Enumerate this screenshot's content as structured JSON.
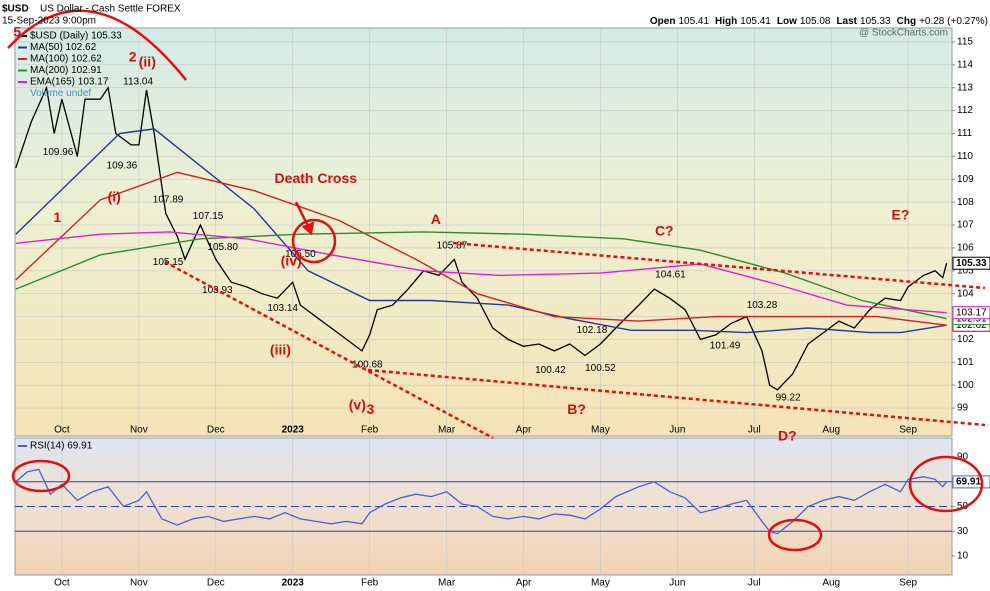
{
  "chart_data": [
    {
      "type": "line",
      "title": "$USD",
      "subtitle": "US Dollar - Cash Settle FOREX",
      "date": "15-Sep-2023 9:00pm",
      "stats": [
        {
          "label": "Open",
          "value": 105.41
        },
        {
          "label": "High",
          "value": 105.41
        },
        {
          "label": "Low",
          "value": 105.08
        },
        {
          "label": "Last",
          "value": 105.33
        },
        {
          "label": "Chg",
          "value": "+0.28 (+0.27%)"
        }
      ],
      "watermark": "@ StockCharts.com",
      "volume_legend": "Volume undef",
      "xlim": [
        0.39,
        12.57
      ],
      "xticks": [
        {
          "value": 1,
          "label": "Oct"
        },
        {
          "value": 2,
          "label": "Nov"
        },
        {
          "value": 3,
          "label": "Dec"
        },
        {
          "value": 4,
          "label": "2023"
        },
        {
          "value": 5,
          "label": "Feb"
        },
        {
          "value": 6,
          "label": "Mar"
        },
        {
          "value": 7,
          "label": "Apr"
        },
        {
          "value": 8,
          "label": "May"
        },
        {
          "value": 9,
          "label": "Jun"
        },
        {
          "value": 10,
          "label": "Jul"
        },
        {
          "value": 11,
          "label": "Aug"
        },
        {
          "value": 12,
          "label": "Sep"
        }
      ],
      "ylim": [
        97.78,
        115.61
      ],
      "yticks": [
        99,
        100,
        101,
        102,
        103,
        104,
        105,
        106,
        107,
        108,
        109,
        110,
        111,
        112,
        113,
        114,
        115
      ],
      "grid": true,
      "series": [
        {
          "name": "$USD (Daily) 105.33",
          "color": "#000000",
          "x": [
            0.4,
            0.6,
            0.8,
            0.9,
            1.0,
            1.2,
            1.3,
            1.5,
            1.6,
            1.7,
            1.9,
            2.0,
            2.1,
            2.2,
            2.35,
            2.5,
            2.6,
            2.8,
            3.0,
            3.2,
            3.4,
            3.6,
            3.8,
            4.0,
            4.1,
            4.3,
            4.5,
            4.7,
            4.9,
            5.0,
            5.1,
            5.3,
            5.5,
            5.7,
            5.9,
            6.1,
            6.2,
            6.4,
            6.6,
            6.8,
            7.0,
            7.2,
            7.4,
            7.6,
            7.8,
            8.0,
            8.2,
            8.5,
            8.7,
            8.9,
            9.1,
            9.3,
            9.5,
            9.7,
            9.9,
            10.1,
            10.2,
            10.3,
            10.5,
            10.7,
            10.9,
            11.1,
            11.3,
            11.5,
            11.7,
            11.9,
            12.0,
            12.2,
            12.35,
            12.45,
            12.5
          ],
          "values": [
            109.5,
            111.5,
            113,
            111,
            112.5,
            110,
            112.5,
            112.5,
            113,
            111,
            110.5,
            110.5,
            112.9,
            111,
            107.5,
            106.5,
            105.5,
            107,
            105.5,
            104.5,
            104.3,
            104,
            103.8,
            104.5,
            103.5,
            103,
            102.5,
            102,
            101.5,
            102.2,
            103.3,
            103.5,
            104.2,
            105,
            104.8,
            105.5,
            104.5,
            103.8,
            102.5,
            102,
            101.7,
            101.8,
            101.5,
            101.8,
            101.3,
            101.8,
            102.5,
            103.5,
            104.2,
            103.8,
            103.3,
            102,
            102.2,
            102.7,
            103,
            101.5,
            100,
            99.8,
            100.5,
            101.8,
            102.3,
            102.8,
            102.5,
            103.3,
            103.8,
            103.7,
            104.3,
            104.8,
            105,
            104.7,
            105.33
          ]
        },
        {
          "name": "MA(50) 102.62",
          "color": "#1f3a93",
          "x": [
            0.4,
            1.75,
            2.2,
            3.5,
            4.2,
            5.0,
            5.8,
            6.8,
            7.6,
            8.4,
            9.2,
            9.9,
            10.7,
            11.5,
            11.9,
            12.5
          ],
          "values": [
            106.6,
            111,
            111.2,
            107.7,
            105,
            103.7,
            103.7,
            103.5,
            102.9,
            102.4,
            102.4,
            102.3,
            102.5,
            102.3,
            102.3,
            102.62
          ]
        },
        {
          "name": "MA(100) 102.62",
          "color": "#d62020",
          "x": [
            0.4,
            1.5,
            2.5,
            3.5,
            4.6,
            5.6,
            6.4,
            7.4,
            8.5,
            9.5,
            10.5,
            11.6,
            12.5
          ],
          "values": [
            104.6,
            108.1,
            109.3,
            108.5,
            107.2,
            105.5,
            104,
            103,
            102.8,
            103,
            103,
            103,
            102.62
          ]
        },
        {
          "name": "MA(200) 102.91",
          "color": "#2e8b2e",
          "x": [
            0.4,
            1.5,
            2.8,
            4.1,
            5.7,
            7.0,
            8.3,
            9.3,
            10.4,
            11.4,
            12.5
          ],
          "values": [
            104.2,
            105.7,
            106.4,
            106.6,
            106.7,
            106.6,
            106.4,
            105.9,
            104.9,
            103.7,
            102.91
          ]
        },
        {
          "name": "EMA(165) 103.17",
          "color": "#e020d0",
          "x": [
            0.4,
            1.5,
            2.4,
            3.4,
            4.5,
            5.7,
            6.7,
            8.0,
            9.3,
            10.3,
            11.2,
            12.5
          ],
          "values": [
            106.2,
            106.6,
            106.7,
            106.4,
            105.7,
            105,
            104.8,
            104.9,
            105.3,
            104.4,
            103.5,
            103.17
          ]
        }
      ],
      "price_labels": [
        {
          "x": 1.99,
          "value": 113.04,
          "label": "113.04"
        },
        {
          "x": 0.95,
          "value": 109.96,
          "label": "109.96"
        },
        {
          "x": 1.78,
          "value": 109.36,
          "label": "109.36"
        },
        {
          "x": 2.38,
          "value": 107.89,
          "label": "107.89"
        },
        {
          "x": 2.9,
          "value": 107.15,
          "label": "107.15"
        },
        {
          "x": 3.09,
          "value": 105.8,
          "label": "105.80"
        },
        {
          "x": 2.38,
          "value": 105.15,
          "label": "105.15"
        },
        {
          "x": 3.02,
          "value": 103.93,
          "label": "103.93"
        },
        {
          "x": 3.87,
          "value": 103.14,
          "label": "103.14"
        },
        {
          "x": 4.1,
          "value": 105.5,
          "label": "105.50"
        },
        {
          "x": 4.97,
          "value": 100.68,
          "label": "100.68"
        },
        {
          "x": 6.07,
          "value": 105.87,
          "label": "105.87"
        },
        {
          "x": 7.35,
          "value": 100.42,
          "label": "100.42"
        },
        {
          "x": 8.0,
          "value": 100.52,
          "label": "100.52"
        },
        {
          "x": 7.89,
          "value": 102.18,
          "label": "102.18"
        },
        {
          "x": 8.91,
          "value": 104.61,
          "label": "104.61"
        },
        {
          "x": 9.62,
          "value": 101.49,
          "label": "101.49"
        },
        {
          "x": 10.1,
          "value": 103.28,
          "label": "103.28"
        },
        {
          "x": 10.44,
          "value": 99.22,
          "label": "99.22"
        }
      ],
      "annotations": [
        {
          "text": "5",
          "x": 0.42,
          "y": 115.4
        },
        {
          "text": "1",
          "x": 0.94,
          "y": 107.3
        },
        {
          "text": "2",
          "x": 1.92,
          "y": 114.3
        },
        {
          "text": "(ii)",
          "x": 2.11,
          "y": 114.1
        },
        {
          "text": "(i)",
          "x": 1.68,
          "y": 108.2
        },
        {
          "text": "Death Cross",
          "x": 4.3,
          "y": 109
        },
        {
          "text": "(iv)",
          "x": 3.98,
          "y": 105.4
        },
        {
          "text": "(iii)",
          "x": 3.84,
          "y": 101.5
        },
        {
          "text": "(v)",
          "x": 4.84,
          "y": 99.1
        },
        {
          "text": "3",
          "x": 5.01,
          "y": 98.9
        },
        {
          "text": "A",
          "x": 5.86,
          "y": 107.2
        },
        {
          "text": "B?",
          "x": 7.69,
          "y": 98.9
        },
        {
          "text": "C?",
          "x": 8.83,
          "y": 106.7
        },
        {
          "text": "D?",
          "x": 10.43,
          "y": 97.75
        },
        {
          "text": "E?",
          "x": 11.9,
          "y": 107.4
        }
      ]
    },
    {
      "type": "line",
      "xlim": [
        0.39,
        12.57
      ],
      "xticks": [
        {
          "value": 1,
          "label": "Oct"
        },
        {
          "value": 2,
          "label": "Nov"
        },
        {
          "value": 3,
          "label": "Dec"
        },
        {
          "value": 4,
          "label": "2023"
        },
        {
          "value": 5,
          "label": "Feb"
        },
        {
          "value": 6,
          "label": "Mar"
        },
        {
          "value": 7,
          "label": "Apr"
        },
        {
          "value": 8,
          "label": "May"
        },
        {
          "value": 9,
          "label": "Jun"
        },
        {
          "value": 10,
          "label": "Jul"
        },
        {
          "value": 11,
          "label": "Aug"
        },
        {
          "value": 12,
          "label": "Sep"
        }
      ],
      "ylim": [
        -5.35,
        105.4
      ],
      "yticks": [
        10,
        30,
        50,
        70,
        90
      ],
      "hlines": [
        70,
        30
      ],
      "dashed_hlines": [
        50
      ],
      "series": [
        {
          "name": "RSI(14) 69.91",
          "color": "#4a5fd0",
          "x": [
            0.4,
            0.55,
            0.7,
            0.85,
            1.0,
            1.2,
            1.4,
            1.6,
            1.8,
            2.0,
            2.1,
            2.3,
            2.5,
            2.7,
            2.9,
            3.1,
            3.3,
            3.5,
            3.7,
            3.9,
            4.1,
            4.3,
            4.5,
            4.7,
            4.9,
            5.0,
            5.2,
            5.4,
            5.6,
            5.8,
            6.0,
            6.2,
            6.4,
            6.6,
            6.8,
            7.0,
            7.2,
            7.4,
            7.6,
            7.8,
            8.0,
            8.2,
            8.5,
            8.7,
            8.9,
            9.1,
            9.3,
            9.5,
            9.7,
            9.9,
            10.1,
            10.2,
            10.3,
            10.5,
            10.7,
            10.9,
            11.1,
            11.3,
            11.5,
            11.7,
            11.9,
            12.0,
            12.2,
            12.35,
            12.45,
            12.5
          ],
          "values": [
            70,
            78,
            80,
            60,
            68,
            55,
            62,
            66,
            50,
            55,
            62,
            40,
            35,
            40,
            42,
            38,
            40,
            42,
            40,
            45,
            40,
            38,
            36,
            38,
            36,
            45,
            52,
            57,
            60,
            58,
            62,
            52,
            50,
            42,
            40,
            42,
            40,
            44,
            43,
            40,
            48,
            58,
            66,
            70,
            62,
            57,
            45,
            48,
            52,
            55,
            38,
            30,
            28,
            38,
            50,
            55,
            58,
            55,
            62,
            68,
            62,
            72,
            74,
            72,
            66,
            69.91
          ]
        }
      ]
    }
  ]
}
